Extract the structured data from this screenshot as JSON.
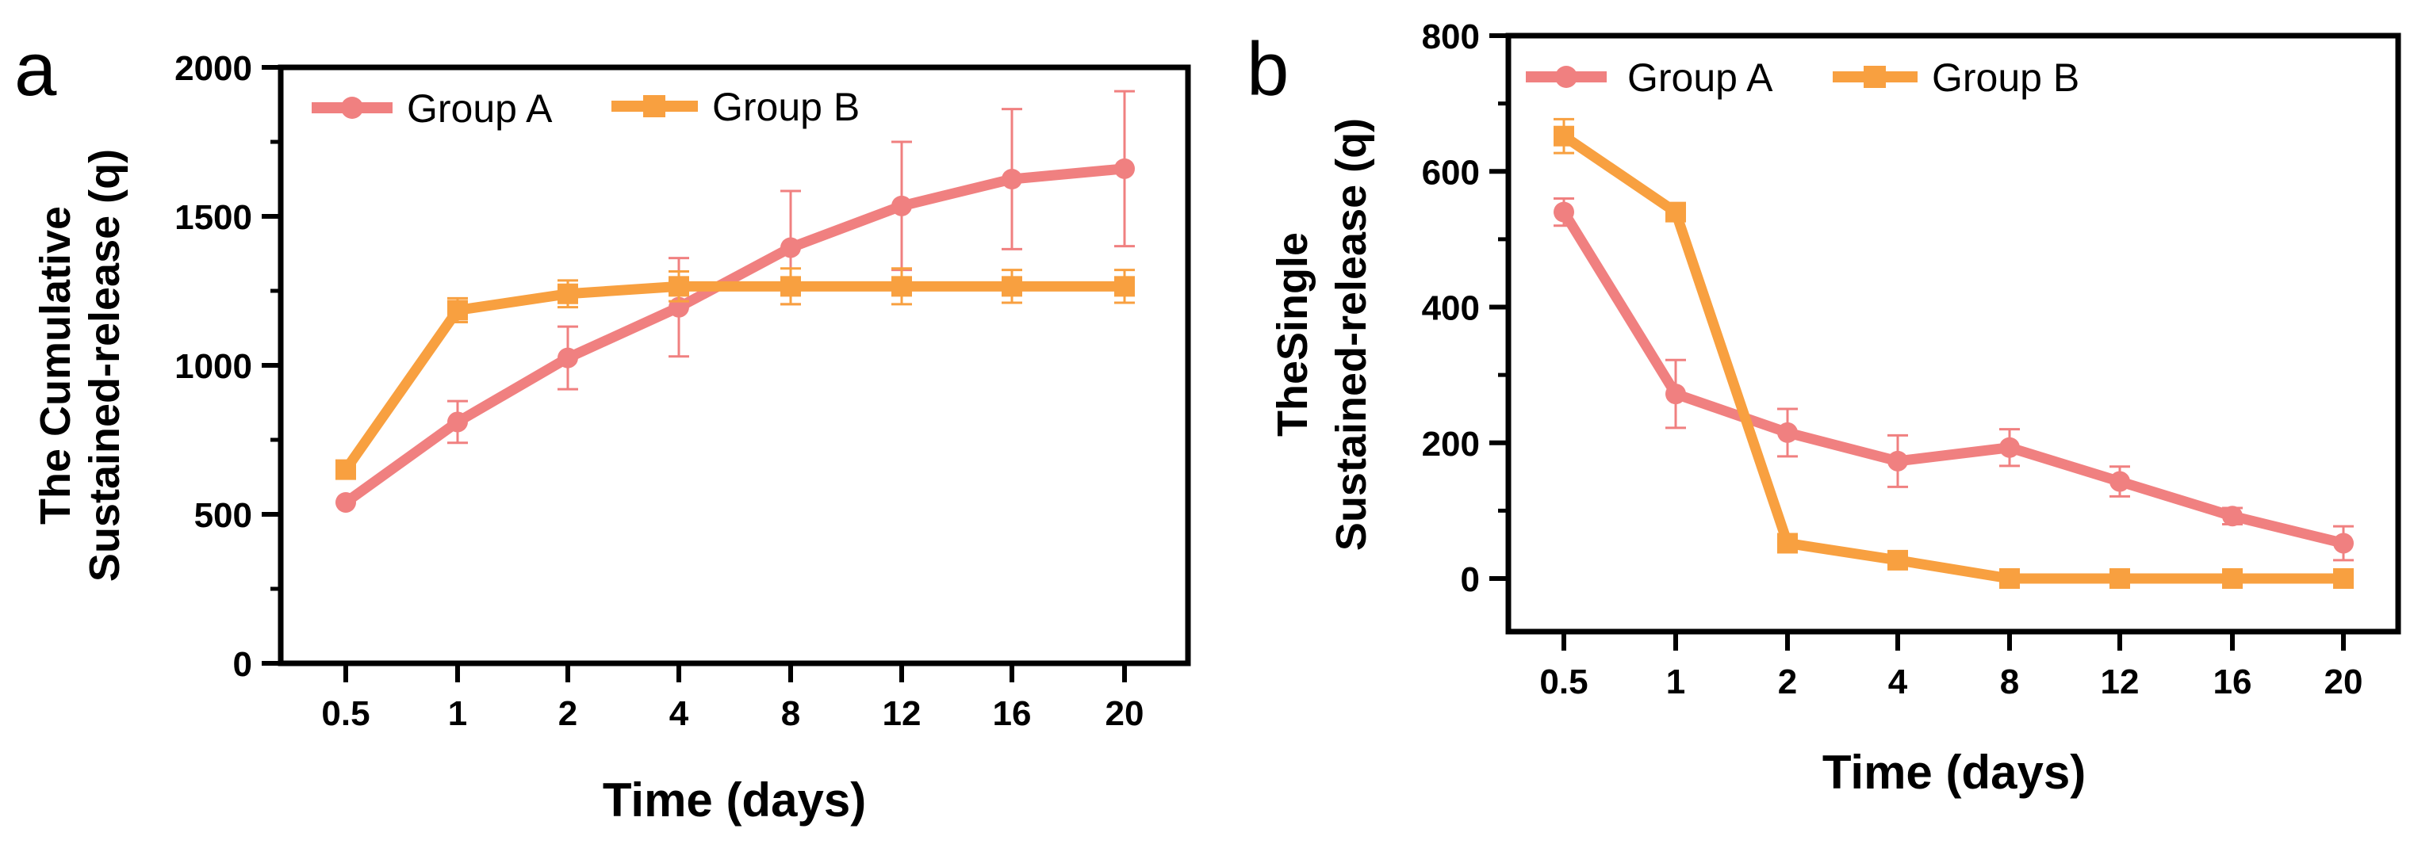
{
  "chart_data": [
    {
      "panel": "a",
      "type": "line",
      "title": "",
      "xlabel": "Time (days)",
      "ylabel_lines": [
        "The Cumulative",
        "Sustained-release (q)"
      ],
      "categories": [
        "0.5",
        "1",
        "2",
        "4",
        "8",
        "12",
        "16",
        "20"
      ],
      "ylim": [
        0,
        2000
      ],
      "yticks": [
        0,
        500,
        1000,
        1500,
        2000
      ],
      "legend_position": "top-left",
      "grid": false,
      "series": [
        {
          "name": "Group A",
          "color": "#f08080",
          "marker": "circle",
          "values": [
            540,
            810,
            1025,
            1195,
            1395,
            1535,
            1625,
            1660
          ],
          "errors": [
            0,
            70,
            105,
            165,
            190,
            215,
            235,
            260
          ]
        },
        {
          "name": "Group B",
          "color": "#f8a040",
          "marker": "square",
          "values": [
            650,
            1185,
            1240,
            1265,
            1265,
            1265,
            1265,
            1265
          ],
          "errors": [
            0,
            40,
            45,
            50,
            60,
            60,
            55,
            55
          ]
        }
      ]
    },
    {
      "panel": "b",
      "type": "line",
      "title": "",
      "xlabel": "Time (days)",
      "ylabel_lines": [
        "TheSingle",
        "Sustained-release (q)"
      ],
      "categories": [
        "0.5",
        "1",
        "2",
        "4",
        "8",
        "12",
        "16",
        "20"
      ],
      "ylim": [
        -80,
        800
      ],
      "yticks": [
        0,
        200,
        400,
        600,
        800
      ],
      "legend_position": "top",
      "grid": false,
      "series": [
        {
          "name": "Group A",
          "color": "#f08080",
          "marker": "circle",
          "values": [
            540,
            272,
            215,
            173,
            193,
            143,
            92,
            52
          ],
          "errors": [
            20,
            50,
            35,
            38,
            27,
            22,
            12,
            25
          ]
        },
        {
          "name": "Group B",
          "color": "#f8a040",
          "marker": "square",
          "values": [
            652,
            540,
            52,
            27,
            0,
            0,
            0,
            0
          ],
          "errors": [
            25,
            8,
            6,
            8,
            0,
            0,
            0,
            0
          ]
        }
      ]
    }
  ]
}
